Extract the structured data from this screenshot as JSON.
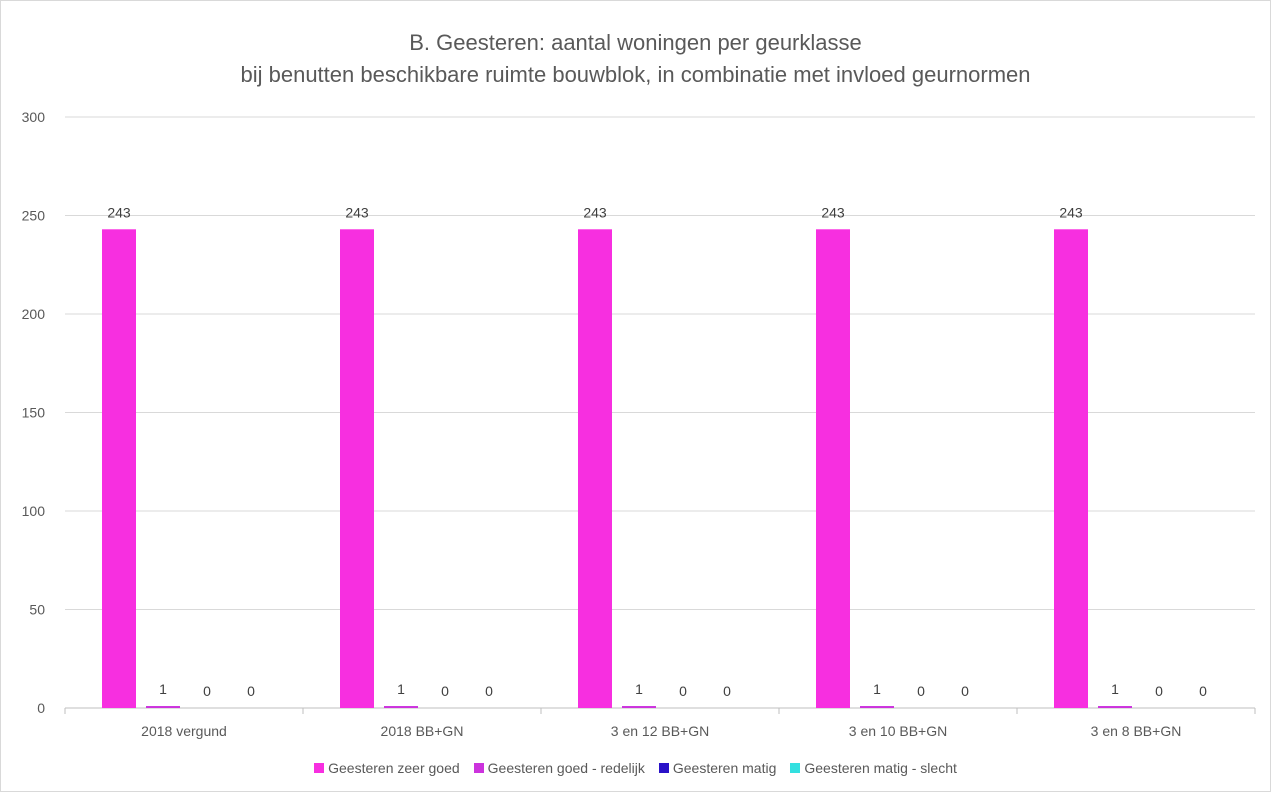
{
  "chart_data": {
    "type": "bar",
    "title": "B. Geesteren: aantal woningen per geurklasse",
    "subtitle": "bij benutten beschikbare ruimte bouwblok, in combinatie met invloed geurnormen",
    "categories": [
      "2018 vergund",
      "2018 BB+GN",
      "3 en 12 BB+GN",
      "3 en 10 BB+GN",
      "3 en 8 BB+GN"
    ],
    "series": [
      {
        "name": "Geesteren zeer goed",
        "color": "#f72fe0",
        "values": [
          243,
          243,
          243,
          243,
          243
        ]
      },
      {
        "name": "Geesteren goed - redelijk",
        "color": "#cc33dd",
        "values": [
          1,
          1,
          1,
          1,
          1
        ]
      },
      {
        "name": "Geesteren matig",
        "color": "#2a12c8",
        "values": [
          0,
          0,
          0,
          0,
          0
        ]
      },
      {
        "name": "Geesteren matig - slecht",
        "color": "#33e0e0",
        "values": [
          0,
          0,
          0,
          0,
          0
        ]
      }
    ],
    "yticks": [
      0,
      50,
      100,
      150,
      200,
      250,
      300
    ],
    "ylim": [
      0,
      300
    ],
    "xlabel": "",
    "ylabel": "",
    "grid": true,
    "legend": "bottom"
  }
}
